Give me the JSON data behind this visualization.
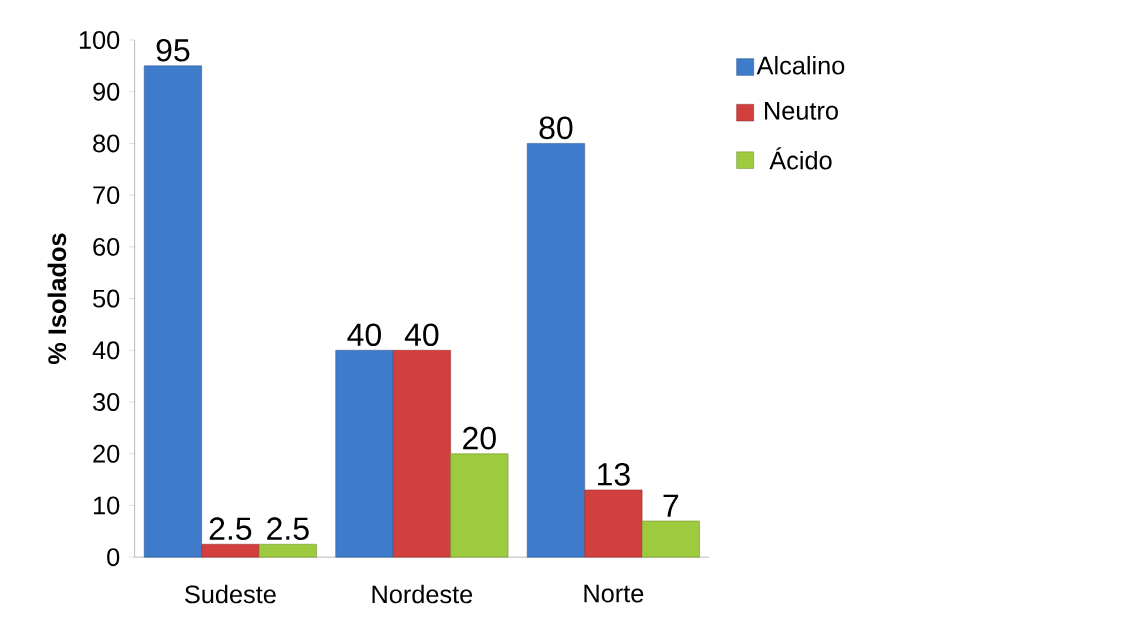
{
  "chart_data": {
    "type": "bar",
    "ylabel": "% Isolados",
    "categories": [
      "Sudeste",
      "Nordeste",
      "Norte"
    ],
    "series": [
      {
        "name": "Alcalino",
        "color": "#3f7bcb",
        "values": [
          95,
          40,
          80
        ]
      },
      {
        "name": "Neutro",
        "color": "#d23f3f",
        "values": [
          2.5,
          40,
          13
        ]
      },
      {
        "name": "Ácido",
        "color": "#9dca3f",
        "values": [
          2.5,
          20,
          7
        ]
      }
    ],
    "ylim": [
      0,
      100
    ],
    "yticks": [
      0,
      10,
      20,
      30,
      40,
      50,
      60,
      70,
      80,
      90,
      100
    ],
    "data_labels": true,
    "legend": "top right",
    "grid": false
  }
}
